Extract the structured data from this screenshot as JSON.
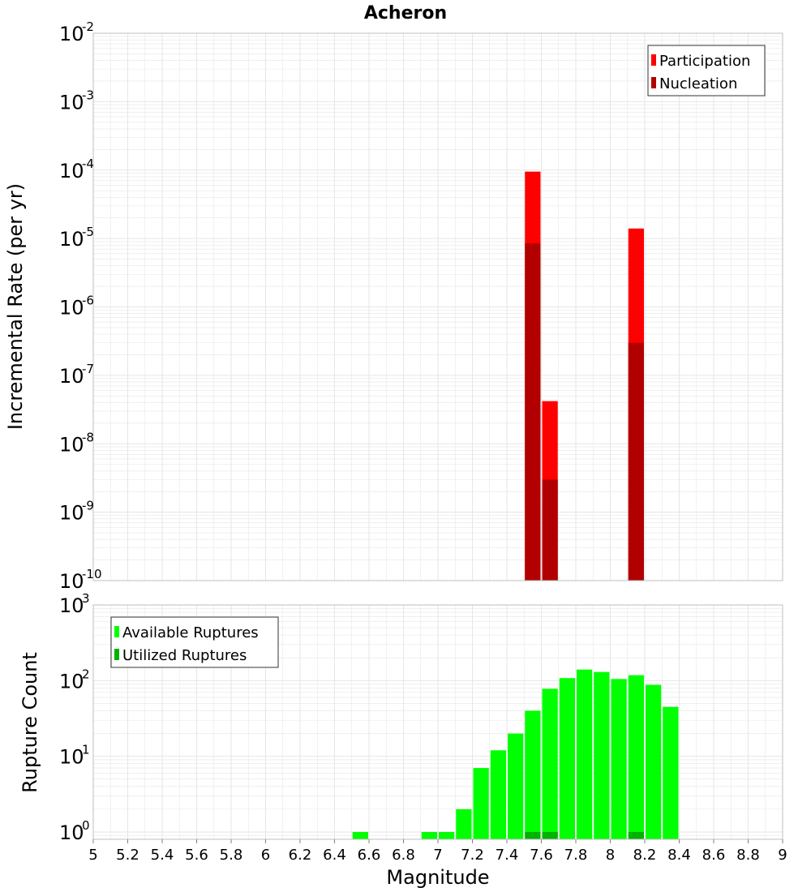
{
  "colors": {
    "participation": "#ff0000",
    "nucleation": "#b20000",
    "available": "#00ff00",
    "utilized": "#00b200",
    "grid": "#e6e6e6",
    "frame": "#bfbfbf"
  },
  "chart_data": [
    {
      "type": "bar",
      "title": "Acheron",
      "xlabel": "",
      "ylabel": "Incremental Rate (per yr)",
      "yscale": "log",
      "ylim": [
        1e-10,
        0.01
      ],
      "xlim": [
        5,
        9
      ],
      "y_tick_exponents": [
        "-10",
        "-9",
        "-8",
        "-7",
        "-6",
        "-5",
        "-4",
        "-3",
        "-2"
      ],
      "legend": {
        "position": "top-right",
        "entries": [
          "Participation",
          "Nucleation"
        ]
      },
      "series": [
        {
          "name": "Participation",
          "x": [
            7.55,
            7.65,
            8.15
          ],
          "values": [
            9.5e-05,
            4.2e-08,
            1.4e-05
          ]
        },
        {
          "name": "Nucleation",
          "x": [
            7.55,
            7.65,
            8.15
          ],
          "values": [
            8.5e-06,
            3e-09,
            3e-07
          ]
        }
      ]
    },
    {
      "type": "bar",
      "title": "",
      "xlabel": "Magnitude",
      "ylabel": "Rupture Count",
      "yscale": "log",
      "ylim": [
        0.8,
        1000
      ],
      "xlim": [
        5,
        9
      ],
      "x_ticks": [
        "5",
        "5.2",
        "5.4",
        "5.6",
        "5.8",
        "6",
        "6.2",
        "6.4",
        "6.6",
        "6.8",
        "7",
        "7.2",
        "7.4",
        "7.6",
        "7.8",
        "8",
        "8.2",
        "8.4",
        "8.6",
        "8.8",
        "9"
      ],
      "y_tick_exponents": [
        "0",
        "1",
        "2",
        "3"
      ],
      "legend": {
        "position": "top-left",
        "entries": [
          "Available Ruptures",
          "Utilized Ruptures"
        ]
      },
      "series": [
        {
          "name": "Available Ruptures",
          "x": [
            6.55,
            6.95,
            7.05,
            7.15,
            7.25,
            7.35,
            7.45,
            7.55,
            7.65,
            7.75,
            7.85,
            7.95,
            8.05,
            8.15,
            8.25,
            8.35
          ],
          "values": [
            1,
            1,
            1,
            2,
            7,
            12,
            20,
            40,
            78,
            108,
            140,
            130,
            105,
            118,
            88,
            45
          ]
        },
        {
          "name": "Utilized Ruptures",
          "x": [
            7.55,
            7.65,
            8.15
          ],
          "values": [
            1,
            1,
            1
          ]
        }
      ]
    }
  ]
}
